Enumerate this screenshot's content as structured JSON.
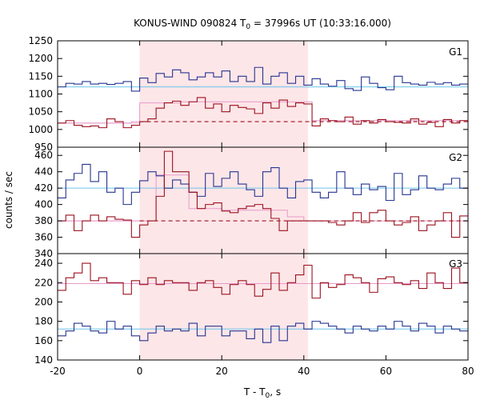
{
  "chart_data": {
    "type": "line",
    "title": "KONUS-WIND 090824 T",
    "title_sub": "0",
    "title_rest": " = 37996s UT (10:33:16.000)",
    "xlabel": "T - T",
    "xlabel_sub": "0",
    "xlabel_rest": ", s",
    "ylabel": "counts / sec",
    "xlim": [
      -20,
      80
    ],
    "xticks": [
      -20,
      0,
      20,
      40,
      60,
      80
    ],
    "highlight_interval": [
      0,
      41
    ],
    "bin_edges": [
      -20,
      -18,
      -16,
      -14,
      -12,
      -10,
      -8,
      -6,
      -4,
      -2,
      0,
      2,
      4,
      6,
      8,
      10,
      12,
      14,
      16,
      18,
      20,
      22,
      24,
      26,
      28,
      30,
      32,
      34,
      36,
      38,
      40,
      42,
      44,
      46,
      48,
      50,
      52,
      54,
      56,
      58,
      60,
      62,
      64,
      66,
      68,
      70,
      72,
      74,
      76,
      78,
      80
    ],
    "panels": [
      {
        "label": "G1",
        "ylim": [
          950,
          1250
        ],
        "yticks": [
          950,
          1000,
          1050,
          1100,
          1150,
          1200,
          1250
        ],
        "blue": [
          1120,
          1130,
          1128,
          1135,
          1128,
          1130,
          1127,
          1130,
          1135,
          1108,
          1145,
          1132,
          1158,
          1148,
          1168,
          1160,
          1140,
          1148,
          1160,
          1148,
          1165,
          1135,
          1150,
          1135,
          1175,
          1128,
          1150,
          1160,
          1130,
          1150,
          1125,
          1143,
          1128,
          1122,
          1138,
          1115,
          1110,
          1148,
          1130,
          1118,
          1112,
          1150,
          1132,
          1128,
          1125,
          1133,
          1128,
          1132,
          1125,
          1128
        ],
        "blue_bg": 1120,
        "red": [
          1018,
          1025,
          1012,
          1008,
          1010,
          1005,
          1030,
          1022,
          1005,
          1012,
          1022,
          1030,
          1060,
          1075,
          1080,
          1068,
          1078,
          1090,
          1060,
          1072,
          1050,
          1068,
          1062,
          1058,
          1045,
          1075,
          1060,
          1083,
          1065,
          1075,
          1072,
          1010,
          1030,
          1025,
          1022,
          1035,
          1015,
          1025,
          1018,
          1028,
          1022,
          1020,
          1018,
          1030,
          1015,
          1020,
          1008,
          1028,
          1018,
          1025
        ],
        "red_bg": 1022,
        "pink_steps": [
          [
            -20,
            -2,
            1018
          ],
          [
            -2,
            0,
            1022
          ],
          [
            0,
            10,
            1075
          ],
          [
            10,
            42,
            1078
          ],
          [
            42,
            80,
            1025
          ]
        ],
        "pink_bg": 1018
      },
      {
        "label": "G2",
        "ylim": [
          340,
          470
        ],
        "yticks": [
          340,
          360,
          380,
          400,
          420,
          440,
          460
        ],
        "blue": [
          408,
          430,
          438,
          449,
          428,
          440,
          415,
          420,
          400,
          415,
          429,
          440,
          435,
          420,
          430,
          425,
          415,
          410,
          438,
          422,
          432,
          440,
          425,
          418,
          410,
          440,
          445,
          420,
          408,
          428,
          430,
          415,
          408,
          415,
          440,
          420,
          412,
          425,
          418,
          422,
          405,
          438,
          412,
          418,
          435,
          420,
          418,
          425,
          432,
          420
        ],
        "blue_bg": 420,
        "red": [
          380,
          387,
          368,
          380,
          387,
          380,
          385,
          382,
          381,
          360,
          375,
          380,
          410,
          465,
          440,
          440,
          415,
          395,
          400,
          402,
          392,
          390,
          395,
          398,
          400,
          395,
          383,
          368,
          380,
          380,
          380,
          380,
          380,
          378,
          375,
          380,
          390,
          378,
          390,
          393,
          380,
          375,
          378,
          385,
          368,
          375,
          380,
          390,
          360,
          386
        ],
        "red_bg": 380,
        "pink_steps": [
          [
            -20,
            0,
            380
          ],
          [
            0,
            4,
            380
          ],
          [
            4,
            12,
            436
          ],
          [
            12,
            20,
            395
          ],
          [
            20,
            36,
            393
          ],
          [
            36,
            40,
            385
          ],
          [
            40,
            80,
            380
          ]
        ],
        "pink_bg": 380
      },
      {
        "label": "G3",
        "ylim": [
          140,
          250
        ],
        "yticks": [
          140,
          160,
          180,
          200,
          220,
          240
        ],
        "red": [
          212,
          225,
          230,
          240,
          222,
          225,
          220,
          220,
          208,
          222,
          218,
          225,
          218,
          222,
          220,
          220,
          212,
          220,
          222,
          215,
          208,
          218,
          222,
          218,
          206,
          213,
          230,
          212,
          220,
          228,
          238,
          204,
          220,
          215,
          218,
          228,
          225,
          220,
          210,
          224,
          226,
          220,
          218,
          222,
          214,
          230,
          220,
          214,
          235,
          220
        ],
        "red_bg": 219,
        "blue": [
          165,
          170,
          178,
          175,
          170,
          168,
          180,
          172,
          175,
          165,
          160,
          168,
          175,
          170,
          172,
          170,
          178,
          165,
          175,
          175,
          165,
          170,
          170,
          162,
          172,
          158,
          175,
          160,
          175,
          178,
          172,
          180,
          178,
          175,
          172,
          168,
          175,
          172,
          170,
          175,
          172,
          180,
          175,
          170,
          178,
          175,
          168,
          175,
          172,
          170
        ],
        "blue_bg": 172,
        "pink_bg": 219
      }
    ],
    "colors": {
      "red": "#9b111e",
      "blue": "#26348f",
      "light_blue": "#6cc4ea",
      "pink": "#e79ac9",
      "highlight": "#fde6e8"
    }
  }
}
